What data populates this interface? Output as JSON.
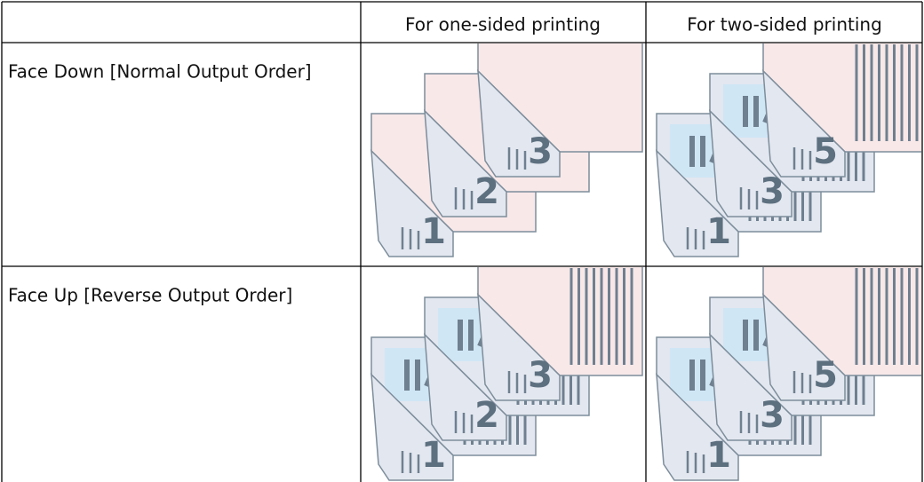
{
  "table": {
    "columns": [
      "For one-sided printing",
      "For two-sided printing"
    ],
    "rows": [
      {
        "label": "Face Down [Normal Output Order]",
        "one_sided": {
          "pages": [
            "1",
            "2",
            "3"
          ]
        },
        "two_sided": {
          "pages": [
            "1",
            "3",
            "5"
          ]
        }
      },
      {
        "label": "Face Up [Reverse Output Order]",
        "one_sided": {
          "pages": [
            "1",
            "2",
            "3"
          ]
        },
        "two_sided": {
          "pages": [
            "1",
            "3",
            "5"
          ]
        }
      }
    ]
  }
}
